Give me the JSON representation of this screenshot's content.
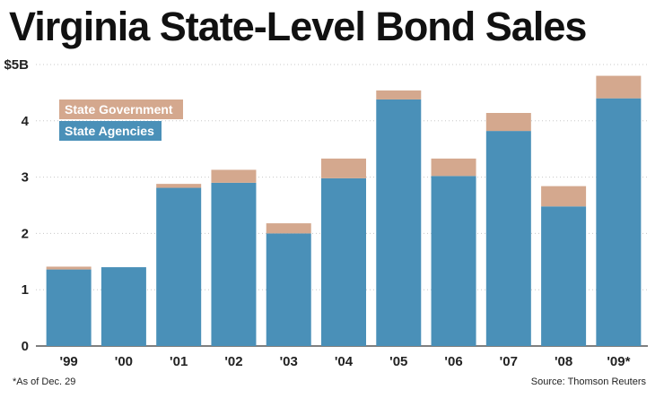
{
  "title": "Virginia State-Level Bond Sales",
  "footnote": "*As of Dec. 29",
  "source": "Source: Thomson Reuters",
  "chart_data": {
    "type": "bar",
    "stacked": true,
    "title": "Virginia State-Level Bond Sales",
    "xlabel": "",
    "ylabel": "",
    "categories": [
      "'99",
      "'00",
      "'01",
      "'02",
      "'03",
      "'04",
      "'05",
      "'06",
      "'07",
      "'08",
      "'09*"
    ],
    "series": [
      {
        "name": "State Agencies",
        "color": "#4a90b8",
        "values": [
          1.36,
          1.4,
          2.81,
          2.9,
          2.0,
          2.98,
          4.38,
          3.02,
          3.82,
          2.48,
          4.4
        ]
      },
      {
        "name": "State Government",
        "color": "#d4a88e",
        "values": [
          0.05,
          0.0,
          0.07,
          0.23,
          0.18,
          0.35,
          0.16,
          0.31,
          0.32,
          0.36,
          0.4
        ]
      }
    ],
    "ylim": [
      0,
      5
    ],
    "yticks": [
      0,
      1,
      2,
      3,
      4,
      5
    ],
    "ytick_labels": [
      "0",
      "1",
      "2",
      "3",
      "4",
      "$5B"
    ],
    "grid": true,
    "legend_position": "top-left"
  }
}
